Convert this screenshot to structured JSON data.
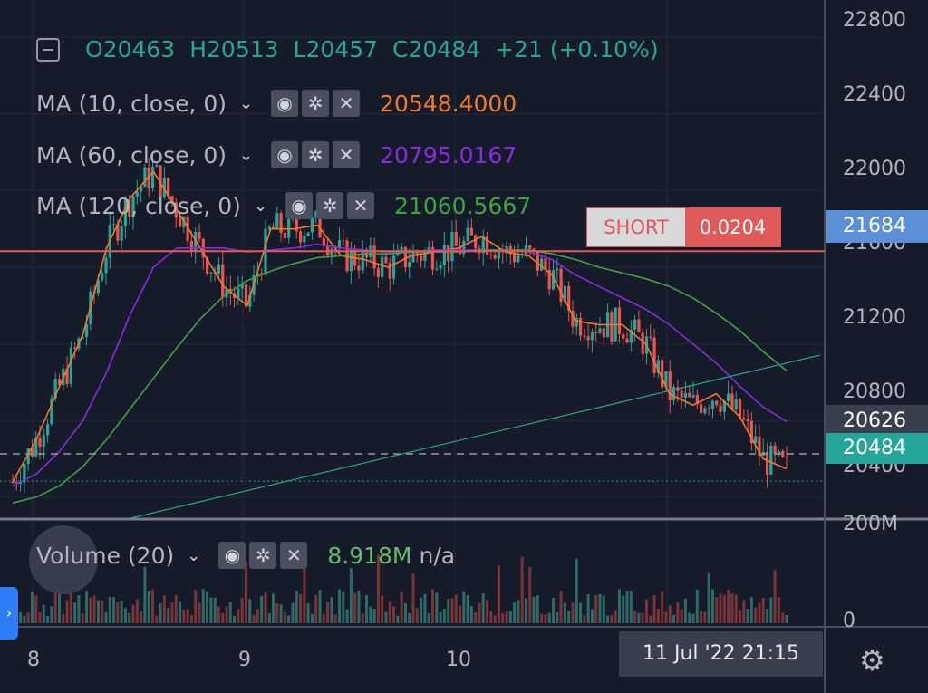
{
  "header": {
    "open": "O20463",
    "high": "H20513",
    "low": "L20457",
    "close": "C20484",
    "change": "+21 (+0.10%)"
  },
  "indicators": [
    {
      "label": "MA (10, close, 0)",
      "value": "20548.4000",
      "color": "#f07a2b"
    },
    {
      "label": "MA (60, close, 0)",
      "value": "20795.0167",
      "color": "#8a2be2"
    },
    {
      "label": "MA (120, close, 0)",
      "value": "21060.5667",
      "color": "#43a047"
    }
  ],
  "volume": {
    "label": "Volume (20)",
    "value": "8.918M",
    "extra": "n/a"
  },
  "order_line": {
    "side": "SHORT",
    "qty": "0.0204",
    "price_label": "21684",
    "price": 21684
  },
  "price_tags": {
    "last": "20484",
    "dashed": "20626"
  },
  "y_axis_labels": [
    "22800",
    "22400",
    "22000",
    "21600",
    "21200",
    "20800",
    "20400"
  ],
  "volume_axis_labels": [
    "200M",
    "0"
  ],
  "x_axis_labels": [
    "8",
    "9",
    "10"
  ],
  "crosshair_time": "11 Jul '22   21:15",
  "colors": {
    "up": "#26a69a",
    "down": "#ef5350",
    "background": "#161b2a",
    "order": "#e05a5a"
  },
  "chart_data": {
    "type": "line",
    "series": [
      {
        "name": "MA (10, close, 0)",
        "values": [
          20480,
          20700,
          20980,
          21250,
          21700,
          21960,
          22100,
          21900,
          21700,
          21500,
          21400,
          21800,
          21800,
          21820,
          21660,
          21640,
          21600,
          21660,
          21680,
          21700,
          21760,
          21680,
          21660,
          21560,
          21320,
          21300,
          21300,
          21200,
          20940,
          20880,
          20940,
          20820,
          20600,
          20548
        ]
      },
      {
        "name": "MA (60, close, 0)",
        "values": [
          20460,
          20520,
          20640,
          20800,
          21050,
          21350,
          21600,
          21700,
          21700,
          21700,
          21680,
          21690,
          21700,
          21720,
          21700,
          21690,
          21680,
          21680,
          21690,
          21690,
          21690,
          21690,
          21680,
          21640,
          21560,
          21500,
          21440,
          21380,
          21300,
          21200,
          21100,
          20980,
          20870,
          20795
        ]
      },
      {
        "name": "MA (120, close, 0)",
        "values": [
          20370,
          20400,
          20460,
          20560,
          20700,
          20860,
          21020,
          21180,
          21330,
          21450,
          21530,
          21580,
          21620,
          21650,
          21660,
          21670,
          21670,
          21680,
          21680,
          21680,
          21690,
          21690,
          21690,
          21670,
          21640,
          21600,
          21570,
          21540,
          21500,
          21440,
          21360,
          21270,
          21160,
          21060
        ]
      }
    ],
    "ylim": [
      20300,
      22900
    ],
    "volume_ylim": [
      0,
      200
    ],
    "dashed_price": 20626,
    "last_price": 20484
  }
}
